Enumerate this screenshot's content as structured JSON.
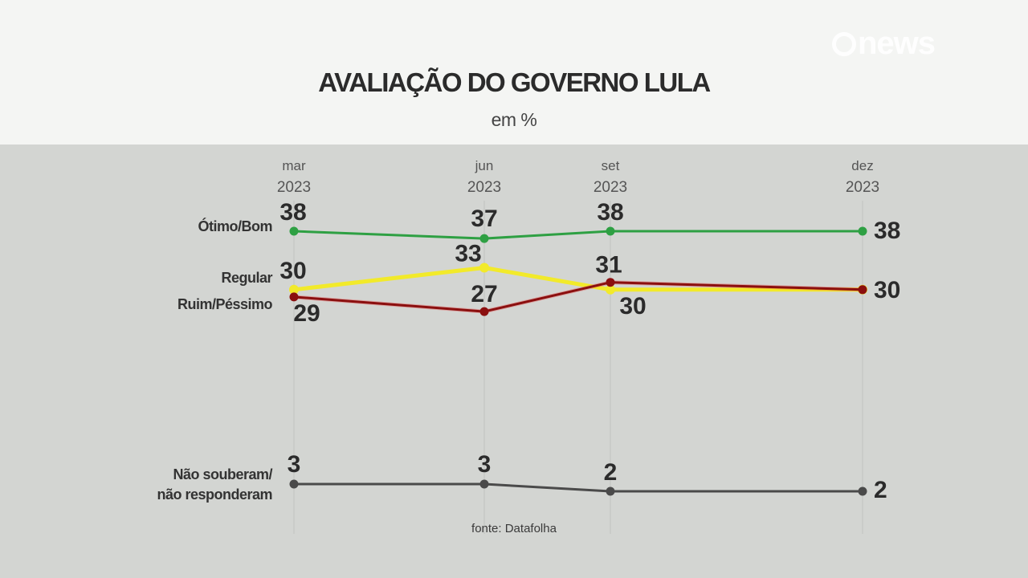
{
  "header": {
    "title": "AVALIAÇÃO DO GOVERNO LULA",
    "subtitle": "em %",
    "logo_text": "news",
    "logo_icon": "globo-g-icon"
  },
  "footer": {
    "source": "fonte: Datafolha"
  },
  "colors": {
    "header_bg": "#f4f5f3",
    "body_bg": "#d3d5d2",
    "otimo_bom": "#2ea043",
    "regular": "#f2ea2a",
    "ruim_pessimo": "#8b0f0f",
    "nao_souberam": "#4a4a4a",
    "gridline": "#c4c6c3",
    "text": "#2b2b2b"
  },
  "chart_data": {
    "type": "line",
    "title": "AVALIAÇÃO DO GOVERNO LULA",
    "subtitle": "em %",
    "xlabel": "",
    "ylabel": "%",
    "categories": [
      "mar 2023",
      "jun 2023",
      "set 2023",
      "dez 2023"
    ],
    "x_labels": [
      {
        "month": "mar",
        "year": "2023"
      },
      {
        "month": "jun",
        "year": "2023"
      },
      {
        "month": "set",
        "year": "2023"
      },
      {
        "month": "dez",
        "year": "2023"
      }
    ],
    "series": [
      {
        "name": "Ótimo/Bom",
        "color": "#2ea043",
        "values": [
          38,
          37,
          38,
          38
        ]
      },
      {
        "name": "Regular",
        "color": "#f2ea2a",
        "values": [
          30,
          33,
          30,
          30
        ]
      },
      {
        "name": "Ruim/Péssimo",
        "color": "#8b0f0f",
        "values": [
          29,
          27,
          31,
          30
        ]
      },
      {
        "name": "Não souberam/ não responderam",
        "color": "#4a4a4a",
        "values": [
          3,
          3,
          2,
          2
        ]
      }
    ],
    "grid": "vertical lines at each survey date",
    "legend": "series labels placed to the left of first data point",
    "source": "fonte: Datafolha"
  }
}
